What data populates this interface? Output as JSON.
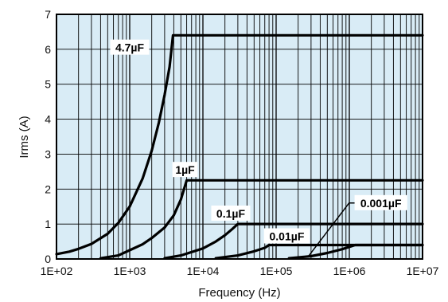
{
  "chart_data": {
    "type": "line",
    "xscale": "log",
    "xlim": [
      100,
      10000000
    ],
    "ylim": [
      0,
      7
    ],
    "xlabel": "Frequency (Hz)",
    "ylabel": "Irms (A)",
    "x_tick_labels": [
      "1E+02",
      "1E+03",
      "1E+04",
      "1E+05",
      "1E+06",
      "1E+07"
    ],
    "y_tick_labels": [
      "0",
      "1",
      "2",
      "3",
      "4",
      "5",
      "6",
      "7"
    ],
    "y_ticks": [
      0,
      1,
      2,
      3,
      4,
      5,
      6,
      7
    ],
    "grid": true,
    "background_color": "#d9ecf6",
    "grid_color": "#000000",
    "line_color": "#000000",
    "series": [
      {
        "name": "4.7µF",
        "x": [
          100,
          150,
          200,
          300,
          500,
          700,
          1000,
          1500,
          2000,
          2500,
          3000,
          3500,
          3900,
          10000000
        ],
        "y": [
          0.14,
          0.21,
          0.29,
          0.43,
          0.72,
          1.03,
          1.5,
          2.3,
          3.1,
          3.9,
          4.7,
          5.5,
          6.4,
          6.4
        ]
      },
      {
        "name": "1µF",
        "x": [
          400,
          700,
          1000,
          1500,
          2000,
          3000,
          4000,
          5000,
          6000,
          10000000
        ],
        "y": [
          0.02,
          0.1,
          0.25,
          0.42,
          0.6,
          0.9,
          1.25,
          1.7,
          2.25,
          2.25
        ]
      },
      {
        "name": "0.1µF",
        "x": [
          3000,
          5000,
          10000,
          15000,
          20000,
          25000,
          30000,
          10000000
        ],
        "y": [
          0.02,
          0.1,
          0.3,
          0.5,
          0.68,
          0.85,
          1.0,
          1.0
        ]
      },
      {
        "name": "0.01µF",
        "x": [
          15000,
          30000,
          50000,
          70000,
          80000,
          10000000
        ],
        "y": [
          0.02,
          0.1,
          0.22,
          0.32,
          0.4,
          0.4
        ]
      },
      {
        "name": "0.001µF",
        "x": [
          150000,
          300000,
          500000,
          800000,
          1200000,
          10000000
        ],
        "y": [
          0.02,
          0.08,
          0.17,
          0.28,
          0.4,
          0.4
        ]
      }
    ],
    "annotations": [
      {
        "text": "4.7µF",
        "x": 1000,
        "y": 6.05
      },
      {
        "text": "1µF",
        "x": 5700,
        "y": 2.55
      },
      {
        "text": "0.1µF",
        "x": 24000,
        "y": 1.3
      },
      {
        "text": "0.01µF",
        "x": 140000,
        "y": 0.65
      },
      {
        "text": "0.001µF",
        "x": 2700000,
        "y": 1.6,
        "leader_to_x": 270000,
        "leader_to_y": 0.05
      }
    ]
  }
}
